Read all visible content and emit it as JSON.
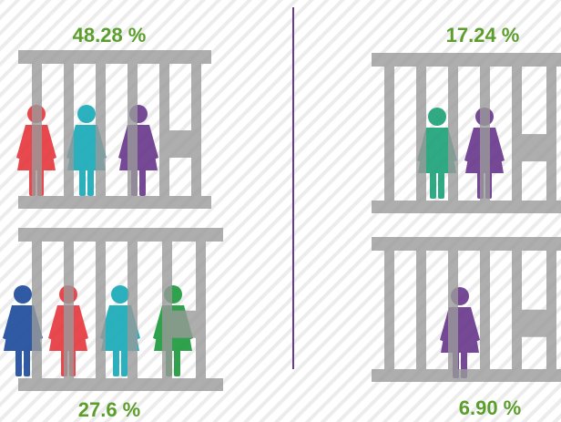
{
  "panels": [
    {
      "label": "48.28 %",
      "figures": [
        "#e63a3f",
        "#1aabb8",
        "#6a3a8e"
      ]
    },
    {
      "label": "27.6 %",
      "figures": [
        "#1f4d9c",
        "#e63a3f",
        "#1aabb8",
        "#1f9a3e"
      ]
    },
    {
      "label": "17.24 %",
      "figures": [
        "#1fa37a",
        "#6a3a8e"
      ]
    },
    {
      "label": "6.90 %",
      "figures": [
        "#6a3a8e"
      ]
    }
  ]
}
